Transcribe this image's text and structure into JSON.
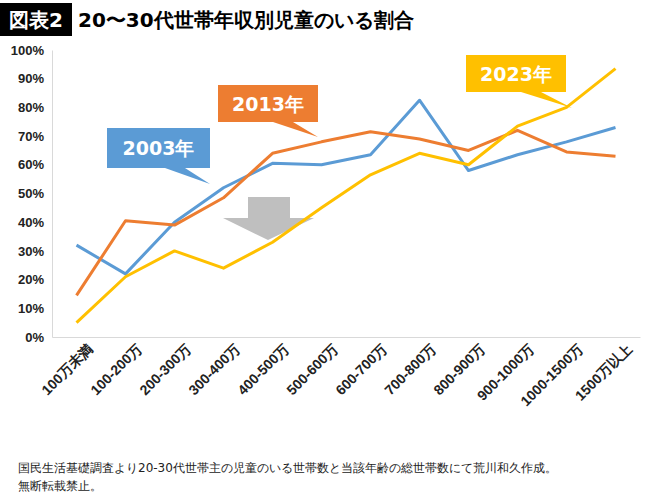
{
  "chart_data": {
    "type": "line",
    "title": "20〜30代世帯年収別児童のいる割合",
    "subtitle": "図表2",
    "annotations": [
      "国民生活基礎調査より20-30代世帯主の児童のいる世帯数と当該年齢の総世帯数にて荒川和久作成。",
      "無断転載禁止。"
    ],
    "categories": [
      "100万未満",
      "100-200万",
      "200-300万",
      "300-400万",
      "400-500万",
      "500-600万",
      "600-700万",
      "700-800万",
      "800-900万",
      "900-1000万",
      "1000-1500万",
      "1500万以上"
    ],
    "series": [
      {
        "name": "2003年",
        "color": "#5b9bd5",
        "values": [
          32,
          22,
          40,
          52,
          60.5,
          60,
          63.5,
          82.5,
          58,
          63.5,
          68,
          73
        ]
      },
      {
        "name": "2013年",
        "color": "#ed7d31",
        "values": [
          14.5,
          40.5,
          39,
          48.5,
          64,
          68,
          71.5,
          69,
          65,
          72,
          64.5,
          63
        ]
      },
      {
        "name": "2023年",
        "color": "#ffc000",
        "values": [
          5,
          21,
          30,
          24,
          33,
          45,
          56.5,
          64,
          60,
          73.5,
          80,
          93.5
        ]
      }
    ],
    "ylim": [
      0,
      100
    ],
    "yticks": [
      {
        "value": 0,
        "label": "0%"
      },
      {
        "value": 10,
        "label": "10%"
      },
      {
        "value": 20,
        "label": "20%"
      },
      {
        "value": 30,
        "label": "30%"
      },
      {
        "value": 40,
        "label": "40%"
      },
      {
        "value": 50,
        "label": "50%"
      },
      {
        "value": 60,
        "label": "60%"
      },
      {
        "value": 70,
        "label": "70%"
      },
      {
        "value": 80,
        "label": "80%"
      },
      {
        "value": 90,
        "label": "90%"
      },
      {
        "value": 100,
        "label": "100%"
      }
    ],
    "grid": false
  }
}
